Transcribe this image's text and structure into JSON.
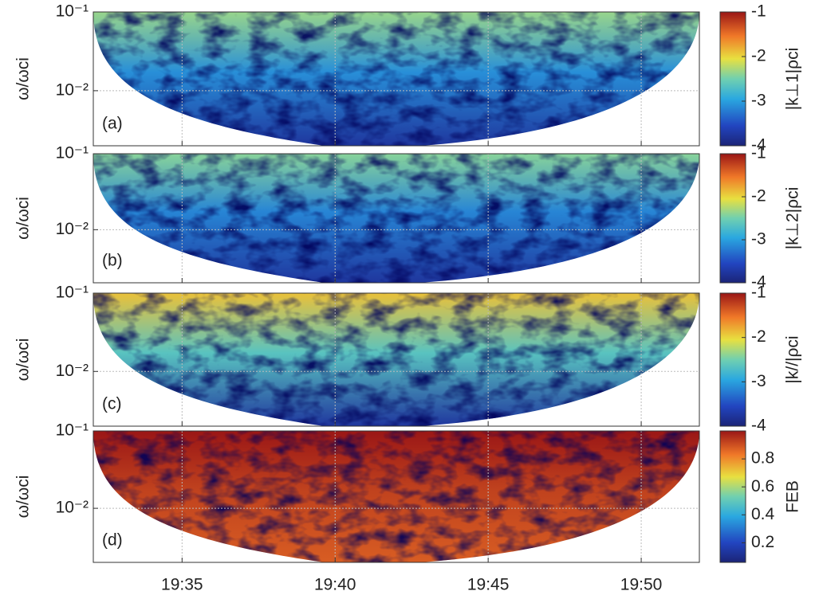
{
  "chart_data": [
    {
      "type": "heatmap",
      "ylabel": "ω/ωci",
      "panel_label": "(a)",
      "y_log": true,
      "ylim": [
        0.002,
        0.1
      ],
      "yticks": [
        {
          "value": 0.1,
          "label": "10⁻¹"
        },
        {
          "value": 0.01,
          "label": "10⁻²"
        }
      ],
      "grid": true,
      "colormap": "jet",
      "colorbar_label": "|k⊥1|ρci",
      "clim": [
        -4,
        -1
      ],
      "cticks": [
        -4,
        -3,
        -2,
        -1
      ],
      "field_level": 0.3
    },
    {
      "type": "heatmap",
      "ylabel": "ω/ωci",
      "panel_label": "(b)",
      "y_log": true,
      "ylim": [
        0.002,
        0.1
      ],
      "yticks": [
        {
          "value": 0.1,
          "label": "10⁻¹"
        },
        {
          "value": 0.01,
          "label": "10⁻²"
        }
      ],
      "grid": true,
      "colormap": "jet",
      "colorbar_label": "|k⊥2|ρci",
      "clim": [
        -4,
        -1
      ],
      "cticks": [
        -4,
        -3,
        -2,
        -1
      ],
      "field_level": 0.28
    },
    {
      "type": "heatmap",
      "ylabel": "ω/ωci",
      "panel_label": "(c)",
      "y_log": true,
      "ylim": [
        0.002,
        0.1
      ],
      "yticks": [
        {
          "value": 0.1,
          "label": "10⁻¹"
        },
        {
          "value": 0.01,
          "label": "10⁻²"
        }
      ],
      "grid": true,
      "colormap": "jet",
      "colorbar_label": "|k//|ρci",
      "clim": [
        -4,
        -1
      ],
      "cticks": [
        -4,
        -3,
        -2,
        -1
      ],
      "field_level": 0.45
    },
    {
      "type": "heatmap",
      "ylabel": "ω/ωci",
      "panel_label": "(d)",
      "y_log": true,
      "ylim": [
        0.002,
        0.1
      ],
      "yticks": [
        {
          "value": 0.1,
          "label": "10⁻¹"
        },
        {
          "value": 0.01,
          "label": "10⁻²"
        }
      ],
      "grid": true,
      "colormap": "jet",
      "colorbar_label": "FEB",
      "clim": [
        0.06,
        1
      ],
      "cticks": [
        0.2,
        0.4,
        0.6,
        0.8
      ],
      "field_level": 0.92,
      "xlim": [
        32.1,
        51.9
      ],
      "xticks": [
        {
          "value": 35,
          "label": "19:35"
        },
        {
          "value": 40,
          "label": "19:40"
        },
        {
          "value": 45,
          "label": "19:45"
        },
        {
          "value": 50,
          "label": "19:50"
        }
      ]
    }
  ]
}
